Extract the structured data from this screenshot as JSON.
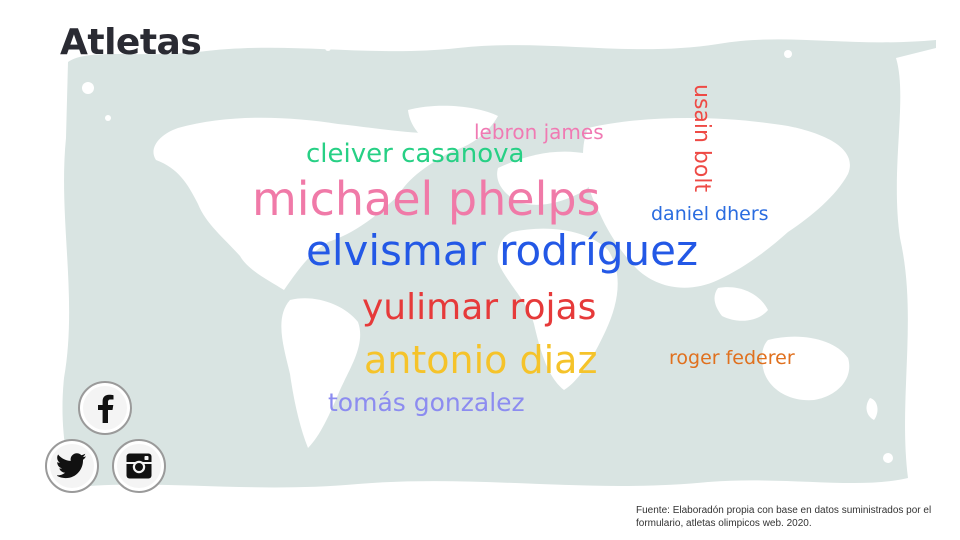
{
  "slide": {
    "title": "Atletas",
    "source_note": "Fuente: Elaboradón propia con base en datos suministrados por el formulario, atletas olimpicos web. 2020."
  },
  "word_cloud": [
    {
      "text": "lebron james",
      "color": "#f07ab3"
    },
    {
      "text": "cleiver casanova",
      "color": "#27d085"
    },
    {
      "text": "usain bolt",
      "color": "#ee4a45"
    },
    {
      "text": "michael phelps",
      "color": "#f07aa8"
    },
    {
      "text": "daniel dhers",
      "color": "#2a6ce0"
    },
    {
      "text": "elvismar rodríguez",
      "color": "#2358e6"
    },
    {
      "text": "yulimar rojas",
      "color": "#e63a3a"
    },
    {
      "text": "antonio diaz",
      "color": "#f5c32a"
    },
    {
      "text": "roger federer",
      "color": "#e0701e"
    },
    {
      "text": "tomás gonzalez",
      "color": "#8c8cf0"
    }
  ],
  "social": [
    {
      "icon": "facebook-icon"
    },
    {
      "icon": "twitter-icon"
    },
    {
      "icon": "instagram-icon"
    }
  ],
  "colors": {
    "frame_background": "#d9e4e2",
    "map_land": "#ffffff",
    "title": "#2a2b33"
  }
}
